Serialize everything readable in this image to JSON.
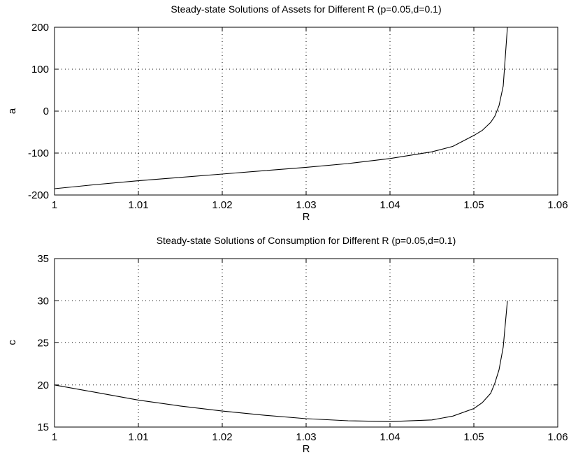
{
  "chart_data": [
    {
      "type": "line",
      "title": "Steady-state Solutions of Assets for Different R (p=0.05,d=0.1)",
      "xlabel": "R",
      "ylabel": "a",
      "xlim": [
        1,
        1.06
      ],
      "ylim": [
        -200,
        200
      ],
      "xticks": [
        "1",
        "1.01",
        "1.02",
        "1.03",
        "1.04",
        "1.05",
        "1.06"
      ],
      "yticks": [
        "200",
        "100",
        "0",
        "-100",
        "-200"
      ],
      "xtick_values": [
        1,
        1.01,
        1.02,
        1.03,
        1.04,
        1.05,
        1.06
      ],
      "ytick_values": [
        200,
        100,
        0,
        -100,
        -200
      ],
      "grid": true,
      "series": [
        {
          "x": [
            1.0,
            1.005,
            1.01,
            1.015,
            1.02,
            1.025,
            1.03,
            1.035,
            1.04,
            1.045,
            1.0475,
            1.05,
            1.051,
            1.052,
            1.0525,
            1.053,
            1.0535,
            1.054
          ],
          "y": [
            -185,
            -175,
            -166,
            -158,
            -150,
            -142,
            -134,
            -125,
            -113,
            -97,
            -84,
            -58,
            -46,
            -27,
            -12,
            13,
            60,
            200
          ]
        }
      ]
    },
    {
      "type": "line",
      "title": "Steady-state Solutions of Consumption for Different R (p=0.05,d=0.1)",
      "xlabel": "R",
      "ylabel": "c",
      "xlim": [
        1,
        1.06
      ],
      "ylim": [
        15,
        35
      ],
      "xticks": [
        "1",
        "1.01",
        "1.02",
        "1.03",
        "1.04",
        "1.05",
        "1.06"
      ],
      "yticks": [
        "35",
        "30",
        "25",
        "20",
        "15"
      ],
      "xtick_values": [
        1,
        1.01,
        1.02,
        1.03,
        1.04,
        1.05,
        1.06
      ],
      "ytick_values": [
        35,
        30,
        25,
        20,
        15
      ],
      "grid": true,
      "series": [
        {
          "x": [
            1.0,
            1.005,
            1.01,
            1.015,
            1.02,
            1.025,
            1.03,
            1.035,
            1.04,
            1.045,
            1.0475,
            1.05,
            1.051,
            1.052,
            1.0525,
            1.053,
            1.0535,
            1.054
          ],
          "y": [
            20.0,
            19.1,
            18.2,
            17.5,
            16.9,
            16.4,
            16.0,
            15.75,
            15.65,
            15.85,
            16.3,
            17.2,
            17.9,
            19.0,
            20.2,
            21.8,
            24.5,
            30.0
          ]
        }
      ]
    }
  ]
}
